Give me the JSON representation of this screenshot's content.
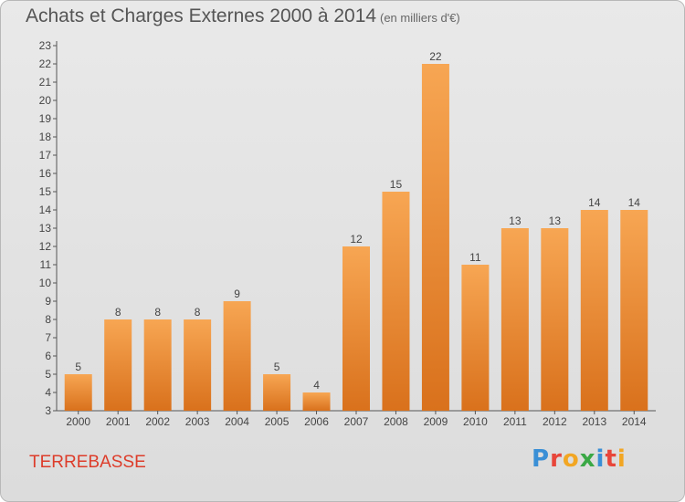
{
  "header": {
    "title": "Achats et Charges Externes 2000 à 2014",
    "subtitle": "(en milliers d'€)"
  },
  "footer": {
    "town": "TERREBASSE",
    "logo": {
      "letters": [
        "P",
        "r",
        "o",
        "x",
        "i",
        "t",
        "i"
      ],
      "colors": [
        "#3a8fd6",
        "#e8463a",
        "#f2a623",
        "#3aa845",
        "#3a8fd6",
        "#e8463a",
        "#f2a623"
      ]
    }
  },
  "chart_data": {
    "type": "bar",
    "categories": [
      "2000",
      "2001",
      "2002",
      "2003",
      "2004",
      "2005",
      "2006",
      "2007",
      "2008",
      "2009",
      "2010",
      "2011",
      "2012",
      "2013",
      "2014"
    ],
    "values": [
      5,
      8,
      8,
      8,
      9,
      5,
      4,
      12,
      15,
      22,
      11,
      13,
      13,
      14,
      14
    ],
    "ylim": [
      3,
      23
    ],
    "yticks": [
      3,
      4,
      5,
      6,
      7,
      8,
      9,
      10,
      11,
      12,
      13,
      14,
      15,
      16,
      17,
      18,
      19,
      20,
      21,
      22,
      23
    ],
    "grid": false,
    "bar_color": "#ee8a2f",
    "bar_color_light": "#f7a653",
    "bar_color_dark": "#d9711c"
  }
}
